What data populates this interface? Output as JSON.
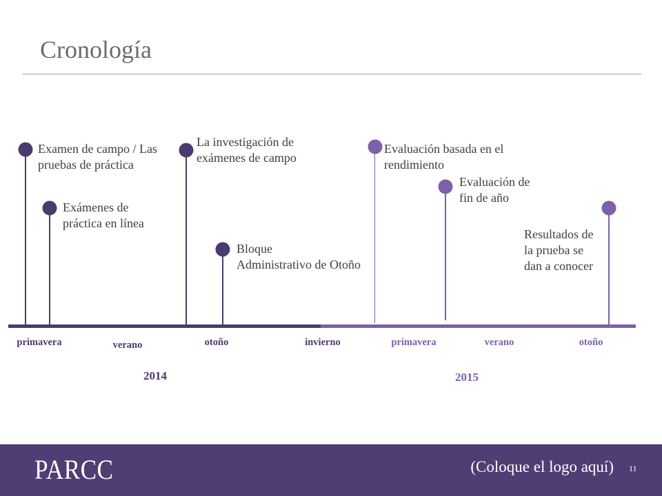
{
  "slide": {
    "title": "Cronología",
    "page_number": "11"
  },
  "colors": {
    "phase_2014": "#4b3a6e",
    "phase_2015": "#7d60a8",
    "footer_band": "#4f3d73",
    "body_text": "#3f3f3f",
    "title_text": "#6b6b6b"
  },
  "timeline": {
    "years": [
      {
        "label": "2014",
        "seasons": [
          "primavera",
          "verano",
          "otoño",
          "invierno"
        ],
        "events": [
          {
            "lines": [
              "Examen de campo / Las",
              "pruebas de práctica"
            ]
          },
          {
            "lines": [
              "Exámenes de",
              "práctica en línea"
            ]
          },
          {
            "lines": [
              "La investigación de",
              "exámenes de campo"
            ]
          },
          {
            "lines": [
              "Bloque",
              "Administrativo de Otoño"
            ]
          }
        ]
      },
      {
        "label": "2015",
        "seasons": [
          "primavera",
          "verano",
          "otoño"
        ],
        "events": [
          {
            "lines": [
              "Evaluación basada en el",
              "rendimiento"
            ]
          },
          {
            "lines": [
              "Evaluación de",
              "fin de año"
            ]
          },
          {
            "lines": [
              "Resultados de",
              "la prueba se",
              "dan a conocer"
            ]
          }
        ]
      }
    ]
  },
  "footer": {
    "brand_logo": "PARCC",
    "logo_placeholder": "(Coloque el logo aquí)"
  }
}
